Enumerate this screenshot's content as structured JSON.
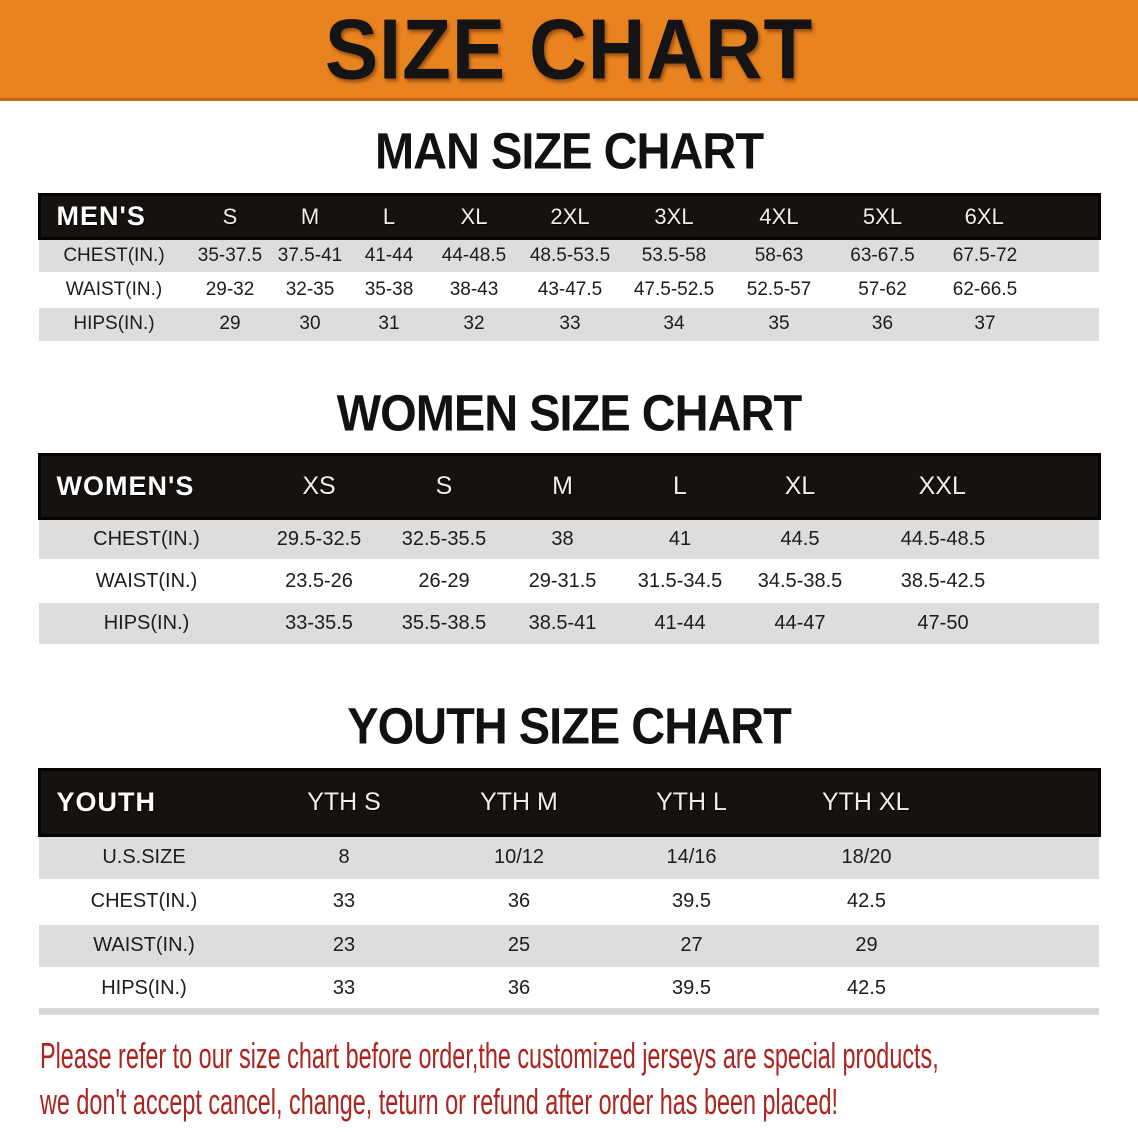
{
  "banner": {
    "title": "SIZE CHART",
    "bg_color": "#E9831F",
    "title_color": "#141414"
  },
  "sections": [
    {
      "id": "men",
      "heading": "MAN SIZE CHART",
      "table": {
        "header_label": "MEN'S",
        "columns": [
          "S",
          "M",
          "L",
          "XL",
          "2XL",
          "3XL",
          "4XL",
          "5XL",
          "6XL"
        ],
        "rows": [
          {
            "label": "CHEST(IN.)",
            "values": [
              "35-37.5",
              "37.5-41",
              "41-44",
              "44-48.5",
              "48.5-53.5",
              "53.5-58",
              "58-63",
              "63-67.5",
              "67.5-72"
            ]
          },
          {
            "label": "WAIST(IN.)",
            "values": [
              "29-32",
              "32-35",
              "35-38",
              "38-43",
              "43-47.5",
              "47.5-52.5",
              "52.5-57",
              "57-62",
              "62-66.5"
            ]
          },
          {
            "label": "HIPS(IN.)",
            "values": [
              "29",
              "30",
              "31",
              "32",
              "33",
              "34",
              "35",
              "36",
              "37"
            ]
          }
        ]
      }
    },
    {
      "id": "women",
      "heading": "WOMEN SIZE CHART",
      "table": {
        "header_label": "WOMEN'S",
        "columns": [
          "XS",
          "S",
          "M",
          "L",
          "XL",
          "XXL"
        ],
        "rows": [
          {
            "label": "CHEST(IN.)",
            "values": [
              "29.5-32.5",
              "32.5-35.5",
              "38",
              "41",
              "44.5",
              "44.5-48.5"
            ]
          },
          {
            "label": "WAIST(IN.)",
            "values": [
              "23.5-26",
              "26-29",
              "29-31.5",
              "31.5-34.5",
              "34.5-38.5",
              "38.5-42.5"
            ]
          },
          {
            "label": "HIPS(IN.)",
            "values": [
              "33-35.5",
              "35.5-38.5",
              "38.5-41",
              "41-44",
              "44-47",
              "47-50"
            ]
          }
        ]
      }
    },
    {
      "id": "youth",
      "heading": "YOUTH SIZE CHART",
      "table": {
        "header_label": "YOUTH",
        "columns": [
          "YTH S",
          "YTH M",
          "YTH L",
          "YTH XL"
        ],
        "rows": [
          {
            "label": "U.S.SIZE",
            "values": [
              "8",
              "10/12",
              "14/16",
              "18/20"
            ]
          },
          {
            "label": "CHEST(IN.)",
            "values": [
              "33",
              "36",
              "39.5",
              "42.5"
            ]
          },
          {
            "label": "WAIST(IN.)",
            "values": [
              "23",
              "25",
              "27",
              "29"
            ]
          },
          {
            "label": "HIPS(IN.)",
            "values": [
              "33",
              "36",
              "39.5",
              "42.5"
            ]
          }
        ]
      }
    }
  ],
  "disclaimer": {
    "lines": [
      "Please refer to our size chart before order,the customized jerseys are special products,",
      "we don't accept cancel, change, teturn or refund after order has been placed!"
    ],
    "color": "#AB2420"
  },
  "colors": {
    "header_bar": "#16120F",
    "row_shaded": "#DDDDDD",
    "row_plain": "#FEFEFE"
  }
}
